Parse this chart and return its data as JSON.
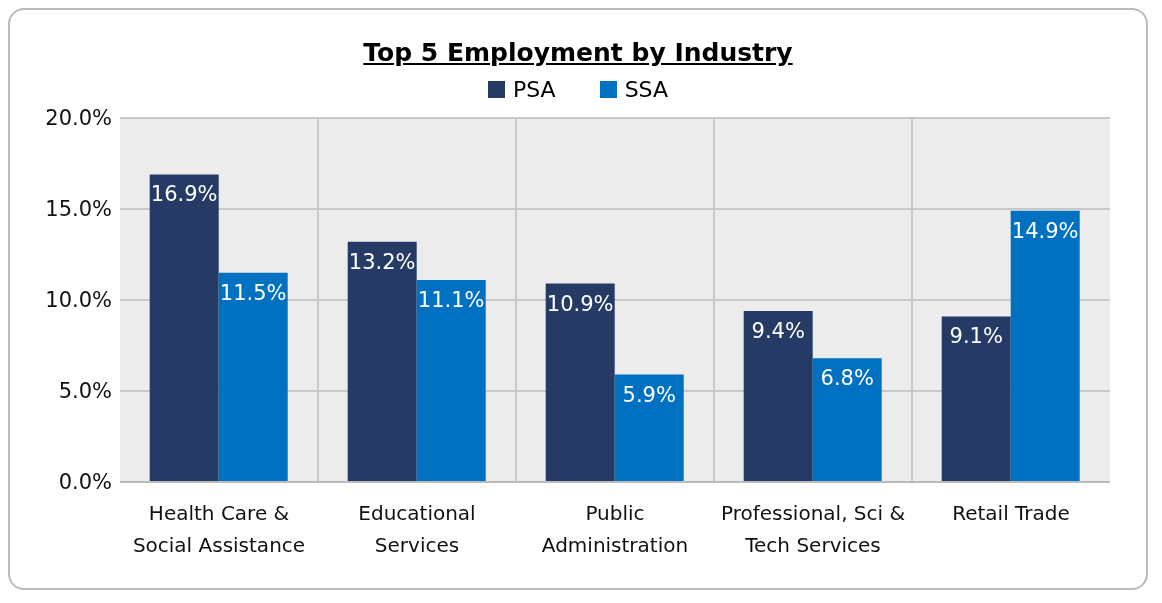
{
  "chart_data": {
    "type": "bar",
    "title": "Top 5 Employment by Industry",
    "categories": [
      "Health Care & Social Assistance",
      "Educational Services",
      "Public Administration",
      "Professional, Sci & Tech Services",
      "Retail Trade"
    ],
    "series": [
      {
        "name": "PSA",
        "color": "#253b66",
        "values": [
          16.9,
          13.2,
          10.9,
          9.4,
          9.1
        ],
        "value_labels": [
          "16.9%",
          "13.2%",
          "10.9%",
          "9.4%",
          "9.1%"
        ]
      },
      {
        "name": "SSA",
        "color": "#0070c0",
        "values": [
          11.5,
          11.1,
          5.9,
          6.8,
          14.9
        ],
        "value_labels": [
          "11.5%",
          "11.1%",
          "5.9%",
          "6.8%",
          "14.9%"
        ]
      }
    ],
    "ylim": [
      0,
      20
    ],
    "yticks": [
      {
        "value": 0,
        "label": "0.0%"
      },
      {
        "value": 5,
        "label": "5.0%"
      },
      {
        "value": 10,
        "label": "10.0%"
      },
      {
        "value": 15,
        "label": "15.0%"
      },
      {
        "value": 20,
        "label": "20.0%"
      }
    ],
    "grid": true,
    "legend": "top"
  }
}
